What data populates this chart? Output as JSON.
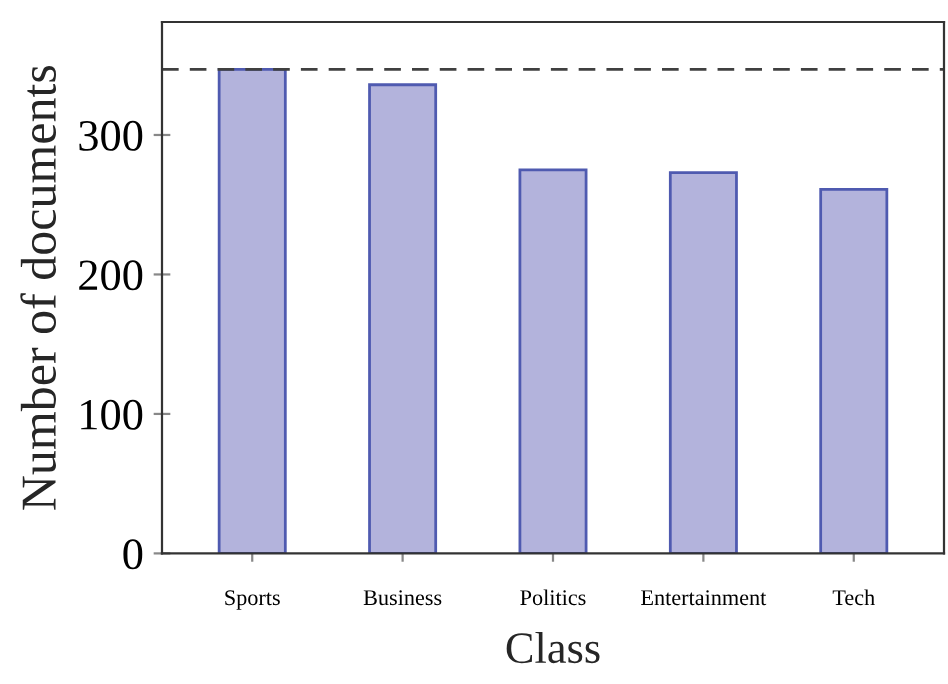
{
  "chart_data": {
    "type": "bar",
    "xlabel": "Class",
    "ylabel": "Number of documents",
    "categories": [
      "Sports",
      "Business",
      "Politics",
      "Entertainment",
      "Tech"
    ],
    "values": [
      347,
      336,
      275,
      273,
      261
    ],
    "color": "#b3b3dc",
    "ylim": [
      0,
      381
    ],
    "yticks": [
      0,
      100,
      200,
      300
    ],
    "ref_lines": [
      {
        "axis": "y",
        "value": 347,
        "color": "#404040",
        "line_style": "dashed"
      }
    ],
    "grid": false,
    "legend": false
  }
}
